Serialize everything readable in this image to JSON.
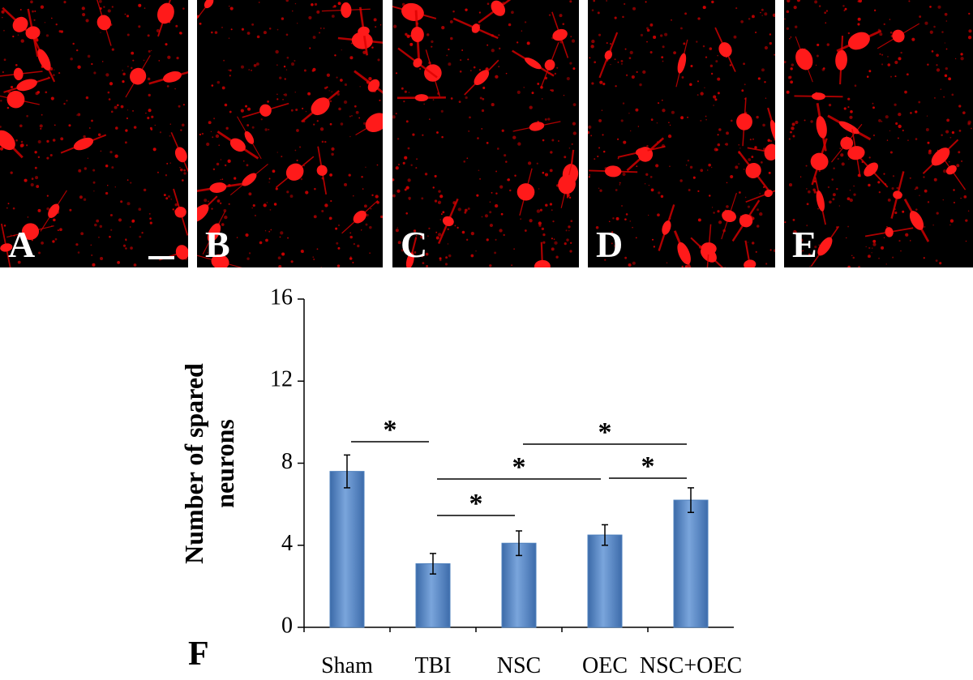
{
  "panels": [
    {
      "label": "A"
    },
    {
      "label": "B"
    },
    {
      "label": "C"
    },
    {
      "label": "D"
    },
    {
      "label": "E"
    }
  ],
  "chart_data": {
    "type": "bar",
    "panel_label": "F",
    "y_label_lines": [
      "Number of spared",
      "neurons"
    ],
    "categories": [
      "Sham",
      "TBI",
      "NSC",
      "OEC",
      "NSC+OEC"
    ],
    "values": [
      7.6,
      3.1,
      4.1,
      4.5,
      6.2
    ],
    "errors": [
      0.8,
      0.5,
      0.6,
      0.5,
      0.6
    ],
    "color": "#4f81bd",
    "ylim": [
      0,
      16
    ],
    "yticks": [
      0,
      4,
      8,
      12,
      16
    ],
    "significance": [
      {
        "from": 0,
        "to": 1,
        "label": "*"
      },
      {
        "from": 1,
        "to": 2,
        "label": "*"
      },
      {
        "from": 1,
        "to": 3,
        "label": "*"
      },
      {
        "from": 2,
        "to": 4,
        "label": "*"
      },
      {
        "from": 3,
        "to": 4,
        "label": "*"
      }
    ]
  }
}
